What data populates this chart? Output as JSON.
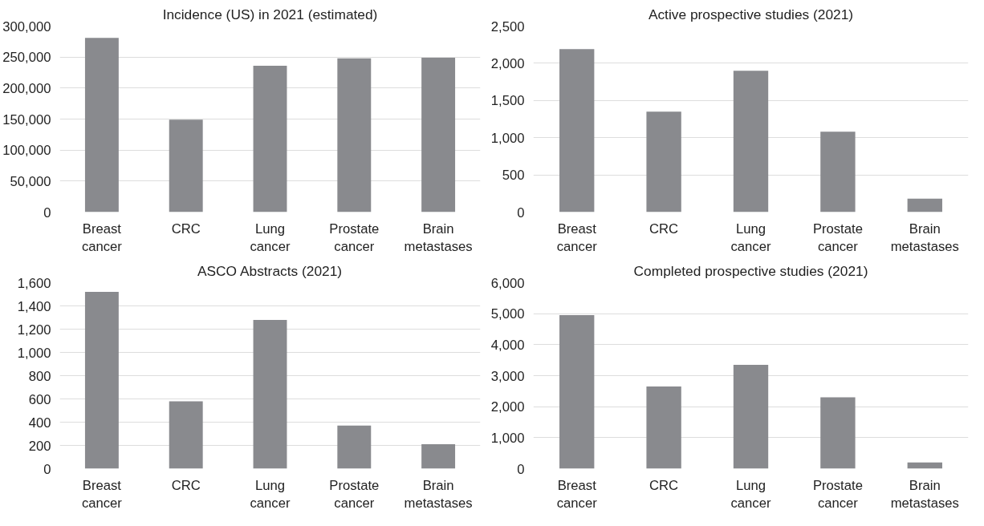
{
  "chart_data": [
    {
      "type": "bar",
      "title": "Incidence (US) in 2021 (estimated)",
      "categories": [
        "Breast cancer",
        "CRC",
        "Lung cancer",
        "Prostate cancer",
        "Brain metastases"
      ],
      "values": [
        281000,
        149000,
        236000,
        248000,
        249000
      ],
      "color": "#898a8e",
      "ylim": [
        0,
        300000
      ],
      "yticks": [
        {
          "value": 0,
          "label": "0"
        },
        {
          "value": 50000,
          "label": "50,000"
        },
        {
          "value": 100000,
          "label": "100,000"
        },
        {
          "value": 150000,
          "label": "150,000"
        },
        {
          "value": 200000,
          "label": "200,000"
        },
        {
          "value": 250000,
          "label": "250,000"
        },
        {
          "value": 300000,
          "label": "300,000"
        }
      ],
      "grid": "y"
    },
    {
      "type": "bar",
      "title": "Active prospective studies (2021)",
      "categories": [
        "Breast cancer",
        "CRC",
        "Lung cancer",
        "Prostate cancer",
        "Brain metastases"
      ],
      "values": [
        2190,
        1350,
        1900,
        1080,
        180
      ],
      "color": "#898a8e",
      "ylim": [
        0,
        2500
      ],
      "yticks": [
        {
          "value": 0,
          "label": "0"
        },
        {
          "value": 500,
          "label": "500"
        },
        {
          "value": 1000,
          "label": "1,000"
        },
        {
          "value": 1500,
          "label": "1,500"
        },
        {
          "value": 2000,
          "label": "2,000"
        },
        {
          "value": 2500,
          "label": "2,500"
        }
      ],
      "grid": "y"
    },
    {
      "type": "bar",
      "title": "ASCO Abstracts (2021)",
      "categories": [
        "Breast cancer",
        "CRC",
        "Lung cancer",
        "Prostate cancer",
        "Brain metastases"
      ],
      "values": [
        1520,
        580,
        1280,
        370,
        210
      ],
      "color": "#898a8e",
      "ylim": [
        0,
        1600
      ],
      "yticks": [
        {
          "value": 0,
          "label": "0"
        },
        {
          "value": 200,
          "label": "200"
        },
        {
          "value": 400,
          "label": "400"
        },
        {
          "value": 600,
          "label": "600"
        },
        {
          "value": 800,
          "label": "800"
        },
        {
          "value": 1000,
          "label": "1,000"
        },
        {
          "value": 1200,
          "label": "1,200"
        },
        {
          "value": 1400,
          "label": "1,400"
        },
        {
          "value": 1600,
          "label": "1,600"
        }
      ],
      "grid": "y"
    },
    {
      "type": "bar",
      "title": "Completed prospective studies (2021)",
      "categories": [
        "Breast cancer",
        "CRC",
        "Lung cancer",
        "Prostate cancer",
        "Brain metastases"
      ],
      "values": [
        4950,
        2650,
        3350,
        2300,
        200
      ],
      "color": "#898a8e",
      "ylim": [
        0,
        6000
      ],
      "yticks": [
        {
          "value": 0,
          "label": "0"
        },
        {
          "value": 1000,
          "label": "1,000"
        },
        {
          "value": 2000,
          "label": "2,000"
        },
        {
          "value": 3000,
          "label": "3,000"
        },
        {
          "value": 4000,
          "label": "4,000"
        },
        {
          "value": 5000,
          "label": "5,000"
        },
        {
          "value": 6000,
          "label": "6,000"
        }
      ],
      "grid": "y"
    }
  ]
}
